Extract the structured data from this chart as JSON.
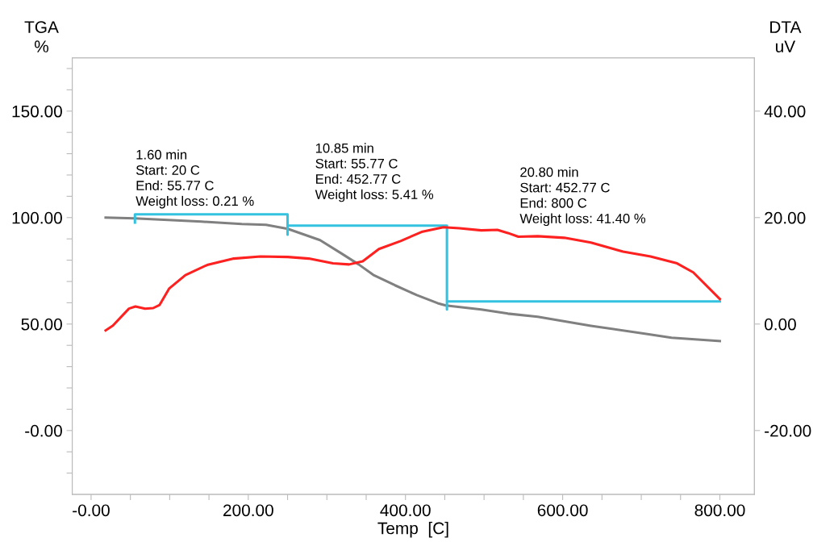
{
  "chart_data": {
    "type": "line",
    "xlabel": "Temp  [C]",
    "ylabel": "TGA\n%",
    "y2label": "DTA\nuV",
    "xlim": [
      -24,
      844
    ],
    "xticks": [
      {
        "value": 0,
        "label": "-0.00"
      },
      {
        "value": 50,
        "label": null
      },
      {
        "value": 100,
        "label": null
      },
      {
        "value": 150,
        "label": null
      },
      {
        "value": 200,
        "label": "200.00"
      },
      {
        "value": 250,
        "label": null
      },
      {
        "value": 300,
        "label": null
      },
      {
        "value": 350,
        "label": null
      },
      {
        "value": 400,
        "label": "400.00"
      },
      {
        "value": 450,
        "label": null
      },
      {
        "value": 500,
        "label": null
      },
      {
        "value": 550,
        "label": null
      },
      {
        "value": 600,
        "label": "600.00"
      },
      {
        "value": 650,
        "label": null
      },
      {
        "value": 700,
        "label": null
      },
      {
        "value": 750,
        "label": null
      },
      {
        "value": 800,
        "label": "800.00"
      }
    ],
    "ylim": [
      -30,
      175
    ],
    "yticks": [
      {
        "value": -20,
        "label": null
      },
      {
        "value": -10,
        "label": null
      },
      {
        "value": 0,
        "label": "-0.00"
      },
      {
        "value": 10,
        "label": null
      },
      {
        "value": 20,
        "label": null
      },
      {
        "value": 30,
        "label": null
      },
      {
        "value": 40,
        "label": null
      },
      {
        "value": 50,
        "label": "50.00"
      },
      {
        "value": 60,
        "label": null
      },
      {
        "value": 70,
        "label": null
      },
      {
        "value": 80,
        "label": null
      },
      {
        "value": 90,
        "label": null
      },
      {
        "value": 100,
        "label": "100.00"
      },
      {
        "value": 110,
        "label": null
      },
      {
        "value": 120,
        "label": null
      },
      {
        "value": 130,
        "label": null
      },
      {
        "value": 140,
        "label": null
      },
      {
        "value": 150,
        "label": "150.00"
      },
      {
        "value": 160,
        "label": null
      },
      {
        "value": 170,
        "label": null
      }
    ],
    "y2lim": [
      -32,
      50
    ],
    "y2ticks": [
      {
        "value": -20,
        "label": "-20.00"
      },
      {
        "value": 0,
        "label": "0.00"
      },
      {
        "value": 20,
        "label": "20.00"
      },
      {
        "value": 40,
        "label": "40.00"
      }
    ],
    "grid": false,
    "marker": "none",
    "line_style": "solid",
    "series": [
      {
        "color": "#808080",
        "x": [
          18.5,
          55.4,
          140.5,
          191.8,
          222.6,
          250.3,
          291.3,
          317.9,
          340.5,
          359.0,
          386.7,
          414.4,
          441.0,
          451.3,
          496.4,
          530.3,
          568.2,
          635.9,
          704.6,
          738.5,
          800
        ],
        "values": [
          100.0,
          99.6,
          98.1,
          97.0,
          96.6,
          94.7,
          89.4,
          83.3,
          78.0,
          73.1,
          68.2,
          63.6,
          59.8,
          58.7,
          56.8,
          54.9,
          53.4,
          49.2,
          45.5,
          43.6,
          42.0
        ]
      },
      {
        "color": "#ff2020",
        "axis": "y2",
        "x": [
          18.5,
          27.7,
          48.2,
          56.4,
          68.7,
          79.0,
          87.2,
          99.5,
          120.0,
          147.7,
          181.5,
          215.4,
          250.3,
          276.9,
          307.7,
          328.2,
          345.6,
          366.2,
          393.8,
          420.5,
          448.2,
          468.7,
          496.4,
          516.9,
          530.3,
          543.6,
          568.2,
          602.1,
          635.9,
          676.9,
          711.8,
          745.6,
          766.2,
          800
        ],
        "values": [
          -1.2,
          -0.3,
          2.9,
          3.3,
          2.9,
          3.0,
          3.6,
          6.7,
          9.2,
          11.1,
          12.3,
          12.7,
          12.6,
          12.3,
          11.4,
          11.2,
          11.8,
          14.1,
          15.6,
          17.3,
          18.2,
          18.0,
          17.6,
          17.7,
          17.1,
          16.4,
          16.5,
          16.2,
          15.3,
          13.6,
          12.7,
          11.4,
          9.7,
          4.7
        ]
      },
      {
        "color": "#33c3e0",
        "x": [
          55.77,
          55.77,
          250,
          250,
          250,
          452.77,
          452.77,
          452.77,
          800
        ],
        "values": [
          97.7,
          101.5,
          101.5,
          92.0,
          96.2,
          96.2,
          56.8,
          60.6,
          60.6
        ]
      }
    ],
    "annotations": [
      "1.60 min\nStart: 20 C\nEnd: 55.77 C\nWeight loss: 0.21 %",
      "10.85 min\nStart: 55.77 C\nEnd: 452.77 C\nWeight loss: 5.41 %",
      "20.80 min\nStart: 452.77 C\nEnd: 800 C\nWeight loss: 41.40 %"
    ]
  }
}
